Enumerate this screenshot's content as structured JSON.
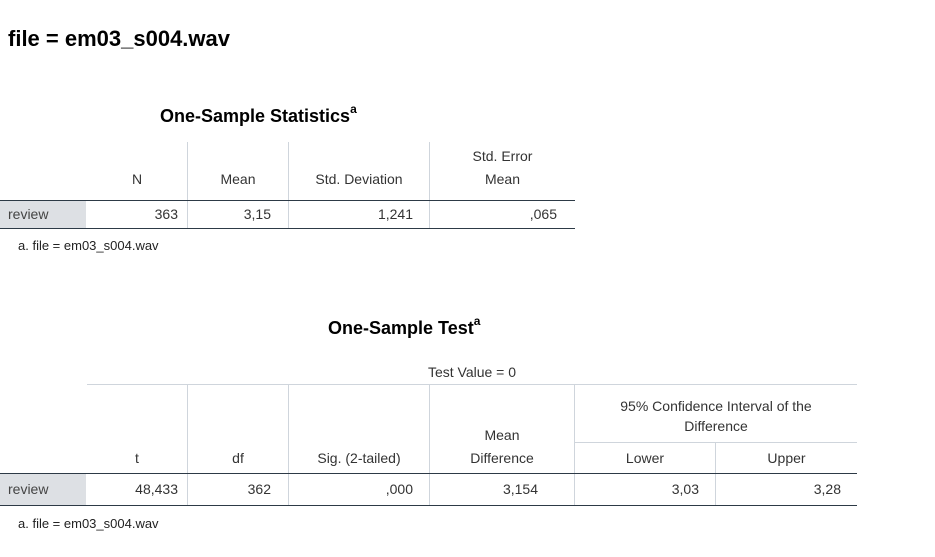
{
  "heading": "file = em03_s004.wav",
  "stats": {
    "title": "One-Sample Statistics",
    "title_sup": "a",
    "columns": [
      "N",
      "Mean",
      "Std. Deviation",
      "Std. Error",
      "Mean"
    ],
    "row": {
      "label": "review",
      "n": "363",
      "mean": "3,15",
      "sd": "1,241",
      "se": ",065"
    },
    "footnote": "a. file = em03_s004.wav"
  },
  "test": {
    "title": "One-Sample Test",
    "title_sup": "a",
    "test_value": "Test Value = 0",
    "ci_header_line1": "95% Confidence Interval of the",
    "ci_header_line2": "Difference",
    "mean_diff_line1": "Mean",
    "mean_diff_line2": "Difference",
    "columns": {
      "t": "t",
      "df": "df",
      "sig": "Sig. (2-tailed)",
      "lower": "Lower",
      "upper": "Upper"
    },
    "row": {
      "label": "review",
      "t": "48,433",
      "df": "362",
      "sig": ",000",
      "md": "3,154",
      "lower": "3,03",
      "upper": "3,28"
    },
    "footnote": "a. file = em03_s004.wav"
  }
}
